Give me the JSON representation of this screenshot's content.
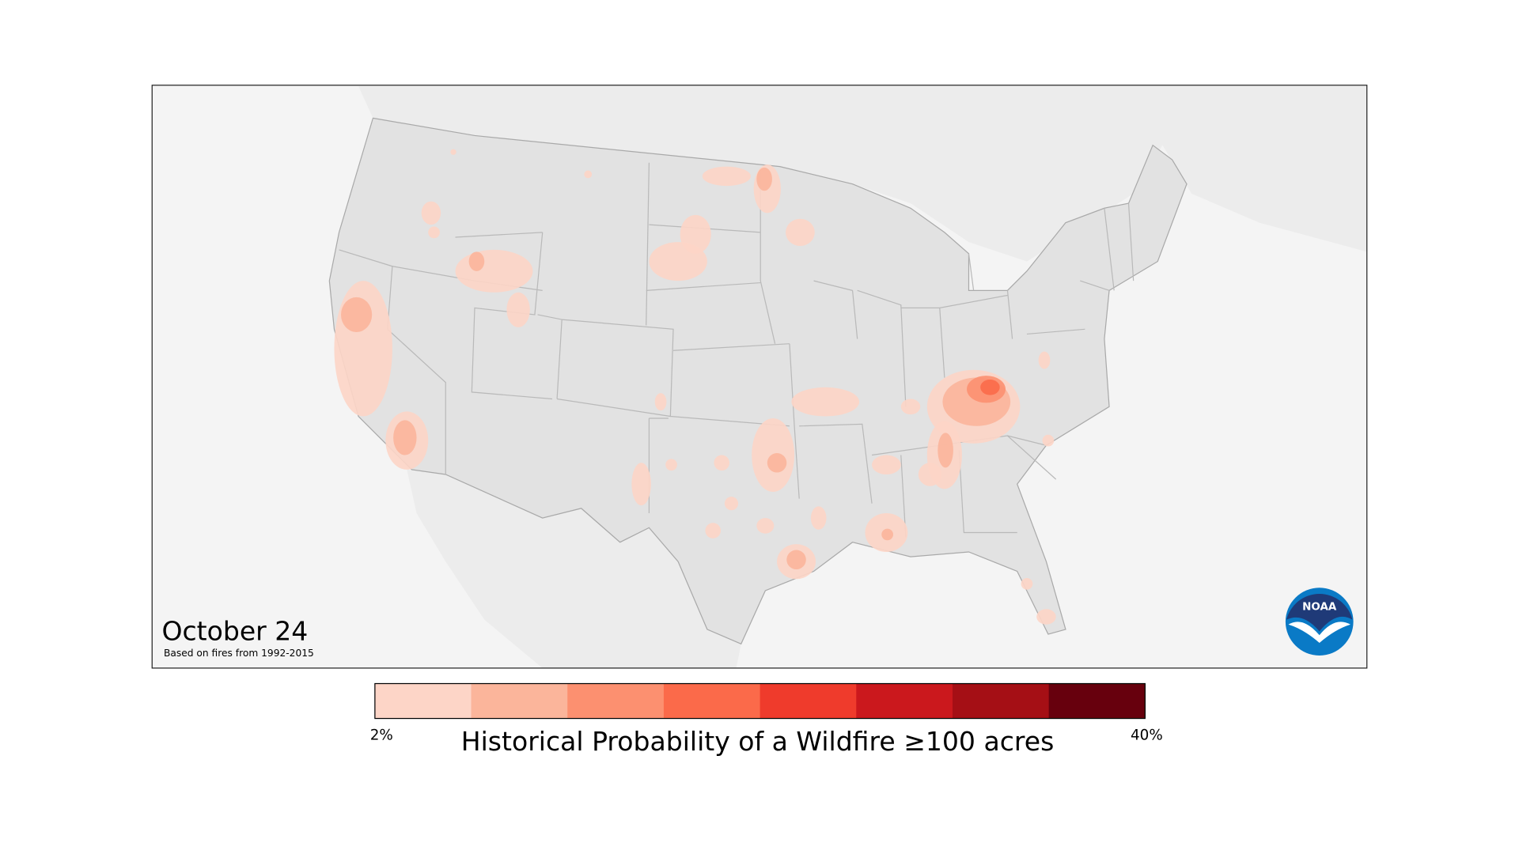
{
  "map": {
    "date_title": "October 24",
    "subtitle": "Based on fires from 1992-2015",
    "logo_text": "NOAA"
  },
  "legend": {
    "title": "Historical Probability of a Wildfire ≥100 acres",
    "min_label": "2%",
    "max_label": "40%",
    "range_percent": [
      2,
      40
    ],
    "colors": [
      "#fdd5c7",
      "#fbb59b",
      "#fc9070",
      "#fb6a4a",
      "#ef3b2c",
      "#cb181d",
      "#a50f15",
      "#67000d"
    ]
  },
  "colors": {
    "land": "#e2e2e2",
    "background": "#f4f4f4",
    "border": "#b9b9b9"
  }
}
